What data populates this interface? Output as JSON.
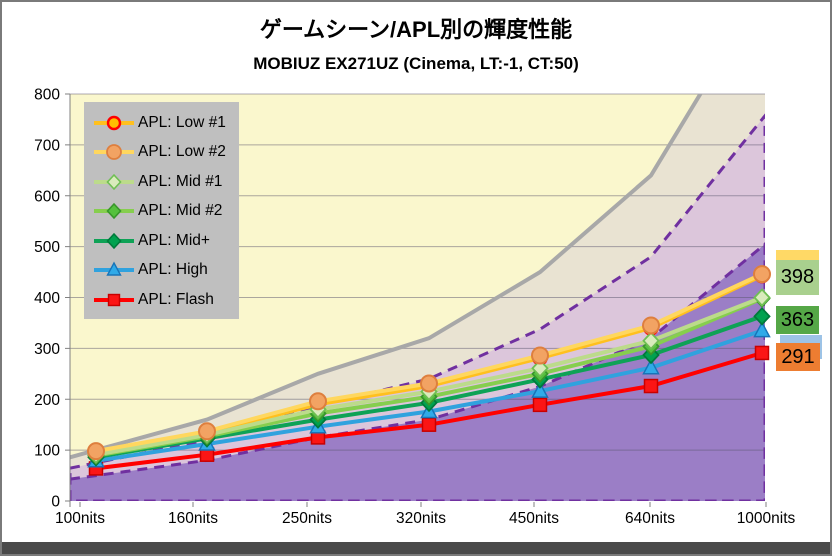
{
  "title": "ゲームシーン/APL別の輝度性能",
  "subtitle": "MOBIUZ EX271UZ (Cinema, LT:-1, CT:50)",
  "legend": {
    "background": "#bfbfbf",
    "items": [
      {
        "label": "APL: Low #1"
      },
      {
        "label": "APL: Low #2"
      },
      {
        "label": "APL: Mid #1"
      },
      {
        "label": "APL: Mid #2"
      },
      {
        "label": "APL: Mid+"
      },
      {
        "label": "APL: High"
      },
      {
        "label": "APL: Flash"
      }
    ]
  },
  "chart_data": {
    "type": "line",
    "title": "ゲームシーン/APL別の輝度性能",
    "subtitle": "MOBIUZ EX271UZ (Cinema, LT:-1, CT:50)",
    "categories": [
      "100nits",
      "160nits",
      "250nits",
      "320nits",
      "450nits",
      "640nits",
      "1000nits"
    ],
    "ylim": [
      0,
      800
    ],
    "ytick_interval": 100,
    "yticks": [
      0,
      100,
      200,
      300,
      400,
      500,
      600,
      700,
      800
    ],
    "grid": true,
    "legend_position": "upper-left",
    "series": [
      {
        "name": "APL: Low #1",
        "marker": "circle",
        "line_color": "#FFC01E",
        "marker_fill": "#FFC000",
        "marker_stroke": "#FF0000",
        "values": [
          96,
          134,
          190,
          226,
          281,
          340,
          443
        ]
      },
      {
        "name": "APL: Low #2",
        "marker": "circle",
        "line_color": "#FFD75E",
        "marker_fill": "#F2A363",
        "marker_stroke": "#DE7F3E",
        "values": [
          98,
          137,
          196,
          231,
          286,
          345,
          446
        ]
      },
      {
        "name": "APL: Mid #1",
        "marker": "diamond",
        "line_color": "#BCDB8B",
        "marker_fill": "#D9EBBC",
        "marker_stroke": "#6FBF53",
        "values": [
          91,
          130,
          180,
          215,
          261,
          315,
          400
        ]
      },
      {
        "name": "APL: Mid #2",
        "marker": "diamond",
        "line_color": "#86CE4E",
        "marker_fill": "#55C13E",
        "marker_stroke": "#38962B",
        "values": [
          89,
          127,
          172,
          205,
          250,
          304,
          398
        ]
      },
      {
        "name": "APL: Mid+",
        "marker": "diamond",
        "line_color": "#0EA256",
        "marker_fill": "#00A24F",
        "marker_stroke": "#007A3B",
        "values": [
          86,
          123,
          160,
          193,
          239,
          287,
          363
        ]
      },
      {
        "name": "APL: High",
        "marker": "triangle",
        "line_color": "#30A2DE",
        "marker_fill": "#30AAE8",
        "marker_stroke": "#1874B8",
        "values": [
          79,
          112,
          146,
          176,
          216,
          262,
          335
        ]
      },
      {
        "name": "APL: Flash",
        "marker": "square",
        "line_color": "#FF0000",
        "marker_fill": "#FB1515",
        "marker_stroke": "#C80000",
        "values": [
          64,
          91,
          125,
          150,
          189,
          226,
          291
        ]
      }
    ],
    "reference": {
      "target_line": {
        "name": "target-luminance",
        "color": "#A8A8A8",
        "area_fill": "#E9E3D2",
        "values": [
          100,
          160,
          250,
          320,
          450,
          640,
          1000
        ]
      },
      "band_75pct": {
        "name": "75%-of-target-band",
        "fill": "#DCC6DB",
        "border": "#7030A0",
        "style": "dashed",
        "values": [
          75,
          120,
          187.5,
          240,
          337.5,
          480,
          750
        ]
      },
      "band_50pct": {
        "name": "50%-of-target-band",
        "fill": "#9B7EC6",
        "border": "#7030A0",
        "style": "dashed",
        "values": [
          50,
          80,
          125,
          160,
          225,
          320,
          500
        ]
      }
    },
    "end_labels": [
      {
        "text": "398",
        "bg": "#A9D08E"
      },
      {
        "text": "363",
        "bg": "#55A747"
      },
      {
        "text": "291",
        "bg": "#ED7D31"
      }
    ],
    "partial_end_labels": [
      {
        "bg": "#FFD966"
      },
      {
        "bg": "#9DC3E6"
      }
    ],
    "plot_background": "#FAF7CD"
  }
}
